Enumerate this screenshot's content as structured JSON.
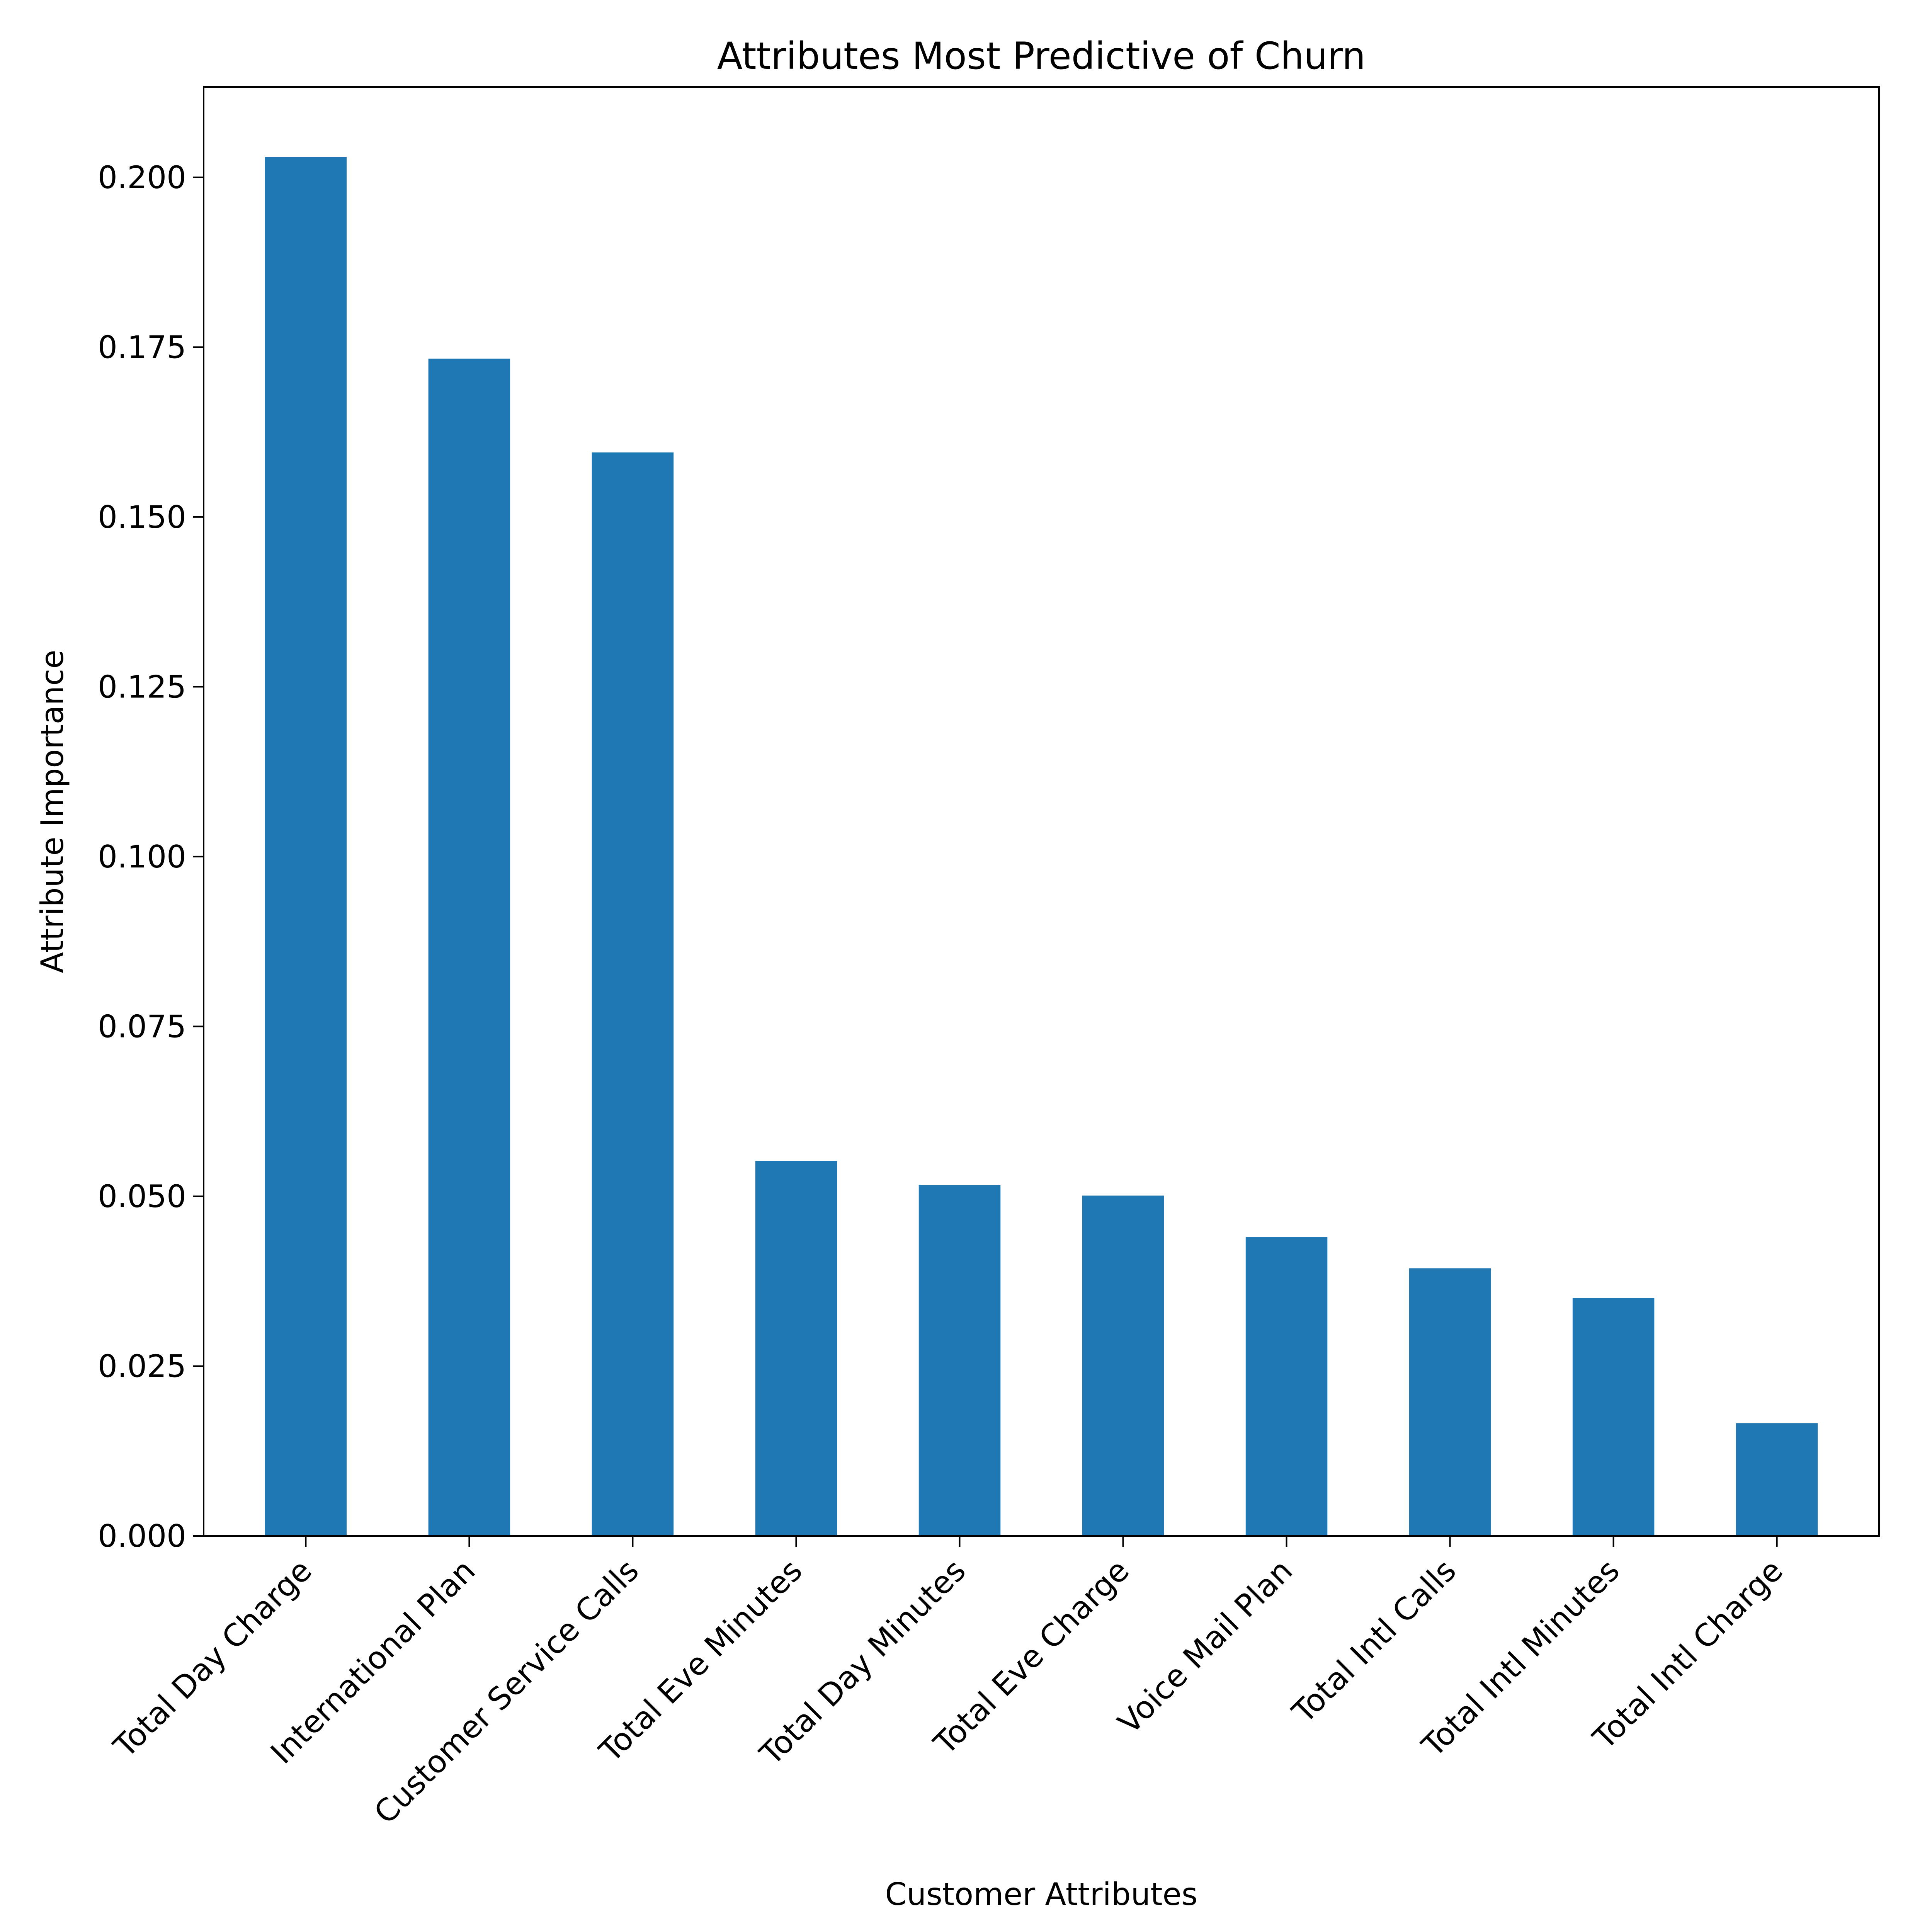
{
  "chart_data": {
    "type": "bar",
    "title": "Attributes Most Predictive of Churn",
    "xlabel": "Customer Attributes",
    "ylabel": "Attribute Importance",
    "categories": [
      "Total Day Charge",
      "International Plan",
      "Customer Service Calls",
      "Total Eve Minutes",
      "Total Day Minutes",
      "Total Eve Charge",
      "Voice Mail Plan",
      "Total Intl Calls",
      "Total Intl Minutes",
      "Total Intl Charge"
    ],
    "values": [
      0.203,
      0.1733,
      0.1595,
      0.0552,
      0.0517,
      0.0501,
      0.044,
      0.0394,
      0.035,
      0.0166
    ],
    "ylim": [
      0,
      0.2133
    ],
    "yticks": [
      0.0,
      0.025,
      0.05,
      0.075,
      0.1,
      0.125,
      0.15,
      0.175,
      0.2
    ],
    "ytick_labels": [
      "0.000",
      "0.025",
      "0.050",
      "0.075",
      "0.100",
      "0.125",
      "0.150",
      "0.175",
      "0.200"
    ],
    "bar_color": "#1f77b4",
    "grid": false,
    "legend": "none"
  }
}
